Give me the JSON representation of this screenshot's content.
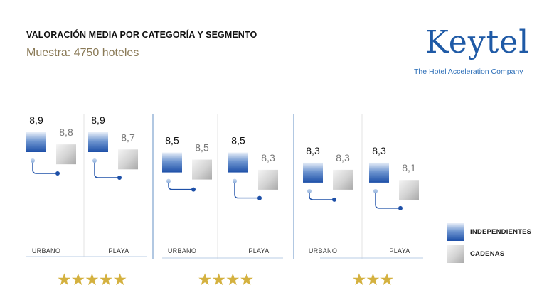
{
  "header": {
    "title": "VALORACIÓN MEDIA POR CATEGORÍA Y SEGMENTO",
    "subtitle": "Muestra: 4750 hoteles"
  },
  "brand": {
    "logo_text": "Keytel",
    "tagline": "The Hotel Acceleration Company",
    "color": "#1f5aa6"
  },
  "legend": [
    {
      "label": "INDEPENDIENTES",
      "swatch": "independientes"
    },
    {
      "label": "CADENAS",
      "swatch": "cadenas"
    }
  ],
  "chart_data": {
    "type": "bar",
    "title": "VALORACIÓN MEDIA POR CATEGORÍA Y SEGMENTO",
    "subtitle": "Muestra: 4750 hoteles",
    "legend_position": "bottom-right",
    "colors": {
      "independientes": "#1e50a8",
      "cadenas": "#b5b5b5",
      "connector": "#1e50a8"
    },
    "groups": [
      {
        "stars": "★★★★★",
        "segments": [
          {
            "label": "URBANO",
            "independientes": "8,9",
            "cadenas": "8,8",
            "ind_value": 8.9,
            "cad_value": 8.8
          },
          {
            "label": "PLAYA",
            "independientes": "8,9",
            "cadenas": "8,7",
            "ind_value": 8.9,
            "cad_value": 8.7
          }
        ]
      },
      {
        "stars": "★★★★",
        "segments": [
          {
            "label": "URBANO",
            "independientes": "8,5",
            "cadenas": "8,5",
            "ind_value": 8.5,
            "cad_value": 8.5
          },
          {
            "label": "PLAYA",
            "independientes": "8,5",
            "cadenas": "8,3",
            "ind_value": 8.5,
            "cad_value": 8.3
          }
        ]
      },
      {
        "stars": "★★★",
        "segments": [
          {
            "label": "URBANO",
            "independientes": "8,3",
            "cadenas": "8,3",
            "ind_value": 8.3,
            "cad_value": 8.3
          },
          {
            "label": "PLAYA",
            "independientes": "8,3",
            "cadenas": "8,1",
            "ind_value": 8.3,
            "cad_value": 8.1
          }
        ]
      }
    ]
  }
}
